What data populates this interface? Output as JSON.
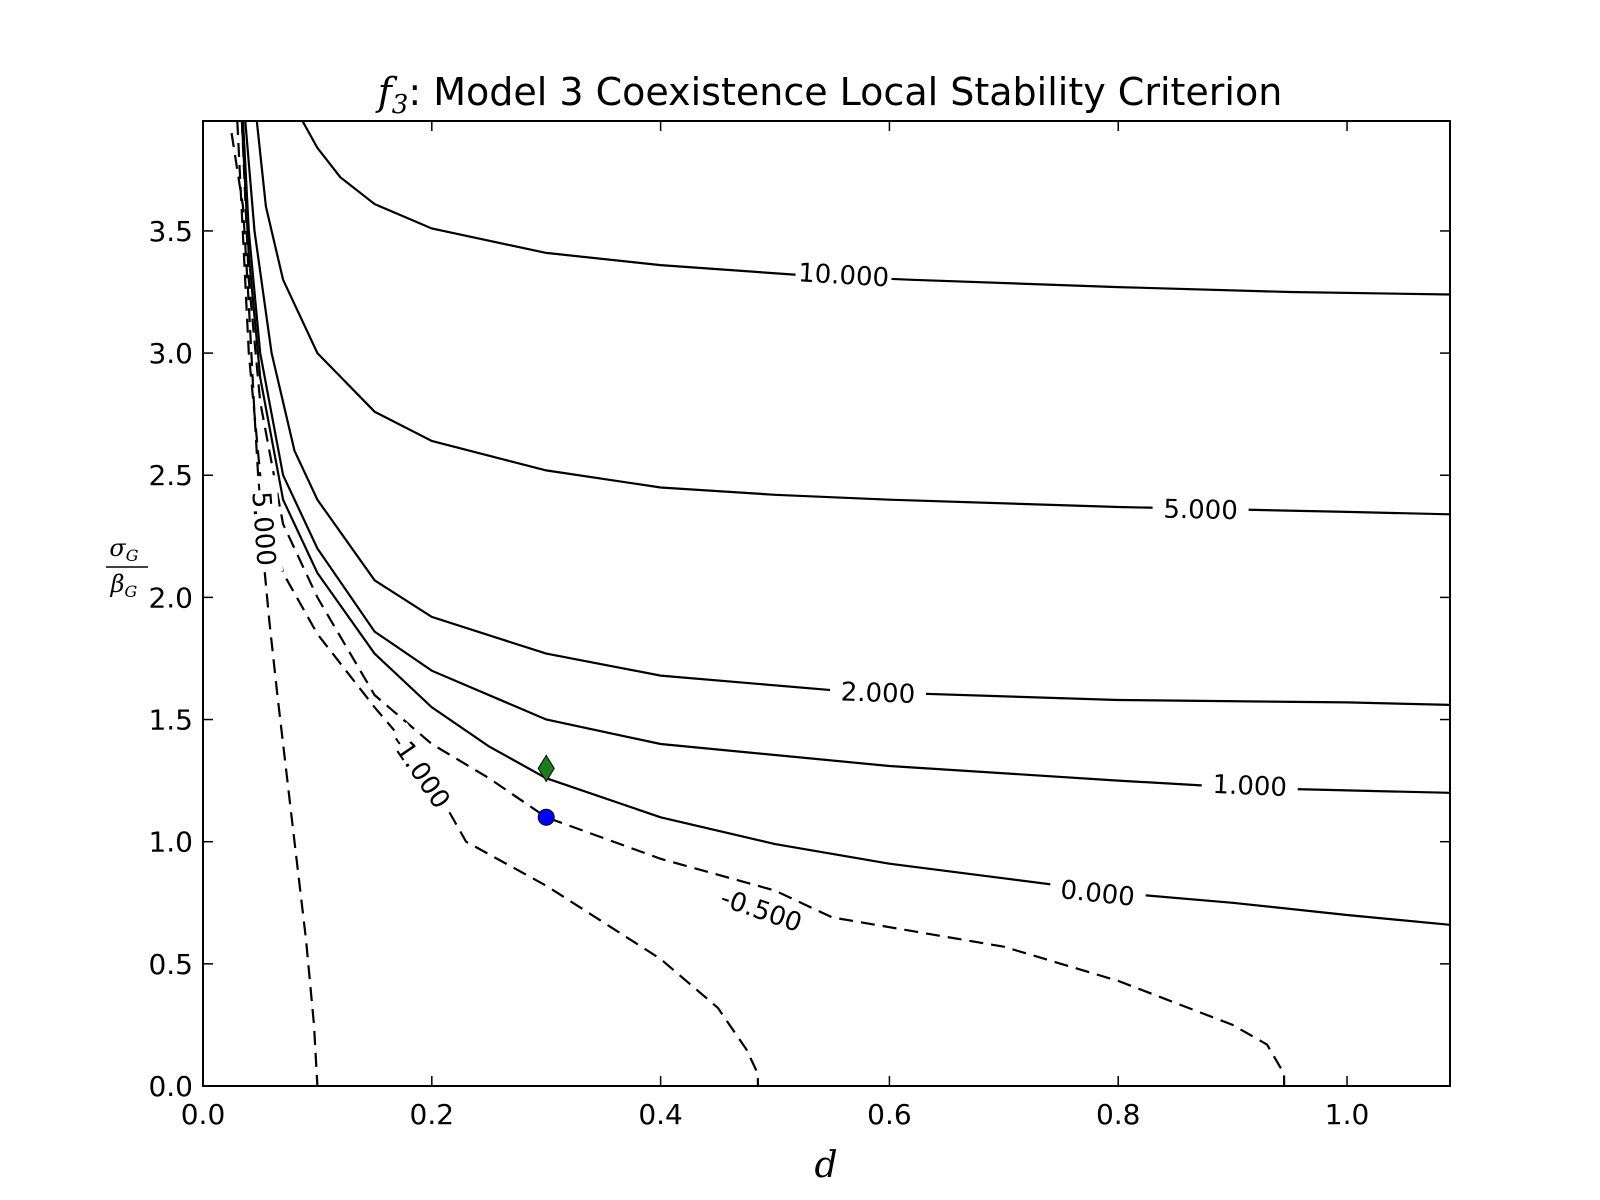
{
  "chart_data": {
    "type": "contour",
    "title": {
      "symbol": "f",
      "subscript": "3",
      "text": ": Model 3 Coexistence Local Stability Criterion"
    },
    "xlabel": "d",
    "ylabel": {
      "numerator": "σ",
      "numerator_sub": "G",
      "denominator": "β",
      "denominator_sub": "G"
    },
    "xlim": [
      0.0,
      1.09
    ],
    "ylim": [
      0.0,
      3.95
    ],
    "xticks": [
      "0.0",
      "0.2",
      "0.4",
      "0.6",
      "0.8",
      "1.0"
    ],
    "yticks": [
      "0.0",
      "0.5",
      "1.0",
      "1.5",
      "2.0",
      "2.5",
      "3.0",
      "3.5"
    ],
    "grid": false,
    "contours": [
      {
        "level": "10.000",
        "style": "solid",
        "points": [
          [
            0.087,
            3.95
          ],
          [
            0.1,
            3.84
          ],
          [
            0.12,
            3.72
          ],
          [
            0.15,
            3.61
          ],
          [
            0.2,
            3.51
          ],
          [
            0.3,
            3.41
          ],
          [
            0.4,
            3.36
          ],
          [
            0.52,
            3.32
          ],
          [
            0.62,
            3.3
          ],
          [
            0.8,
            3.27
          ],
          [
            0.95,
            3.25
          ],
          [
            1.09,
            3.24
          ]
        ],
        "label_at": [
          0.56,
          3.32
        ]
      },
      {
        "level": "5.000",
        "style": "solid",
        "points": [
          [
            0.047,
            3.95
          ],
          [
            0.055,
            3.6
          ],
          [
            0.07,
            3.3
          ],
          [
            0.1,
            3.0
          ],
          [
            0.15,
            2.76
          ],
          [
            0.2,
            2.64
          ],
          [
            0.3,
            2.52
          ],
          [
            0.4,
            2.45
          ],
          [
            0.5,
            2.42
          ],
          [
            0.6,
            2.4
          ],
          [
            0.8,
            2.37
          ],
          [
            0.9,
            2.36
          ],
          [
            1.0,
            2.35
          ],
          [
            1.09,
            2.34
          ]
        ],
        "label_at": [
          0.872,
          2.36
        ]
      },
      {
        "level": "2.000",
        "style": "solid",
        "points": [
          [
            0.037,
            3.95
          ],
          [
            0.045,
            3.5
          ],
          [
            0.06,
            3.0
          ],
          [
            0.08,
            2.6
          ],
          [
            0.1,
            2.4
          ],
          [
            0.15,
            2.07
          ],
          [
            0.2,
            1.92
          ],
          [
            0.3,
            1.77
          ],
          [
            0.4,
            1.68
          ],
          [
            0.55,
            1.62
          ],
          [
            0.6,
            1.61
          ],
          [
            0.8,
            1.58
          ],
          [
            1.0,
            1.57
          ],
          [
            1.09,
            1.56
          ]
        ],
        "label_at": [
          0.59,
          1.61
        ]
      },
      {
        "level": "1.000",
        "style": "solid",
        "points": [
          [
            0.035,
            3.95
          ],
          [
            0.04,
            3.5
          ],
          [
            0.05,
            3.0
          ],
          [
            0.07,
            2.5
          ],
          [
            0.1,
            2.2
          ],
          [
            0.15,
            1.86
          ],
          [
            0.2,
            1.7
          ],
          [
            0.3,
            1.5
          ],
          [
            0.4,
            1.4
          ],
          [
            0.6,
            1.31
          ],
          [
            0.8,
            1.25
          ],
          [
            0.91,
            1.22
          ],
          [
            1.0,
            1.21
          ],
          [
            1.09,
            1.2
          ]
        ],
        "label_at": [
          0.915,
          1.23
        ]
      },
      {
        "level": "0.000",
        "style": "solid",
        "points": [
          [
            0.034,
            3.95
          ],
          [
            0.04,
            3.4
          ],
          [
            0.05,
            2.9
          ],
          [
            0.07,
            2.4
          ],
          [
            0.1,
            2.1
          ],
          [
            0.15,
            1.77
          ],
          [
            0.2,
            1.55
          ],
          [
            0.25,
            1.39
          ],
          [
            0.3,
            1.26
          ],
          [
            0.4,
            1.1
          ],
          [
            0.5,
            0.99
          ],
          [
            0.6,
            0.91
          ],
          [
            0.7,
            0.85
          ],
          [
            0.8,
            0.79
          ],
          [
            0.9,
            0.75
          ],
          [
            1.0,
            0.7
          ],
          [
            1.09,
            0.66
          ]
        ],
        "label_at": [
          0.782,
          0.79
        ]
      },
      {
        "level": "-0.500",
        "style": "dashed",
        "points": [
          [
            0.034,
            3.95
          ],
          [
            0.04,
            3.3
          ],
          [
            0.05,
            2.8
          ],
          [
            0.07,
            2.3
          ],
          [
            0.1,
            2.0
          ],
          [
            0.15,
            1.6
          ],
          [
            0.2,
            1.4
          ],
          [
            0.25,
            1.26
          ],
          [
            0.3,
            1.1
          ],
          [
            0.4,
            0.93
          ],
          [
            0.5,
            0.8
          ],
          [
            0.55,
            0.69
          ],
          [
            0.7,
            0.57
          ],
          [
            0.8,
            0.43
          ],
          [
            0.9,
            0.25
          ],
          [
            0.93,
            0.17
          ],
          [
            0.945,
            0.05
          ],
          [
            0.945,
            0.0
          ]
        ],
        "label_at": [
          0.488,
          0.72
        ]
      },
      {
        "level": "-1.000",
        "style": "dashed",
        "points": [
          [
            0.03,
            3.95
          ],
          [
            0.04,
            3.0
          ],
          [
            0.05,
            2.5
          ],
          [
            0.07,
            2.1
          ],
          [
            0.1,
            1.85
          ],
          [
            0.15,
            1.55
          ],
          [
            0.19,
            1.33
          ],
          [
            0.23,
            1.0
          ],
          [
            0.3,
            0.82
          ],
          [
            0.4,
            0.52
          ],
          [
            0.45,
            0.32
          ],
          [
            0.475,
            0.15
          ],
          [
            0.485,
            0.05
          ],
          [
            0.485,
            0.0
          ]
        ],
        "label_at": [
          0.19,
          1.29
        ]
      },
      {
        "level": "-5.000",
        "style": "dashed",
        "points": [
          [
            0.025,
            3.9
          ],
          [
            0.035,
            3.6
          ],
          [
            0.04,
            3.2
          ],
          [
            0.045,
            2.75
          ],
          [
            0.052,
            2.2
          ],
          [
            0.058,
            1.9
          ],
          [
            0.065,
            1.6
          ],
          [
            0.08,
            1.0
          ],
          [
            0.09,
            0.6
          ],
          [
            0.097,
            0.25
          ],
          [
            0.1,
            0.0
          ]
        ],
        "label_at": [
          0.053,
          2.3
        ]
      }
    ],
    "markers": [
      {
        "shape": "diamond",
        "color": "#1a7f1a",
        "x": 0.3,
        "y": 1.3
      },
      {
        "shape": "circle",
        "color": "#0000ff",
        "x": 0.3,
        "y": 1.1
      }
    ]
  }
}
